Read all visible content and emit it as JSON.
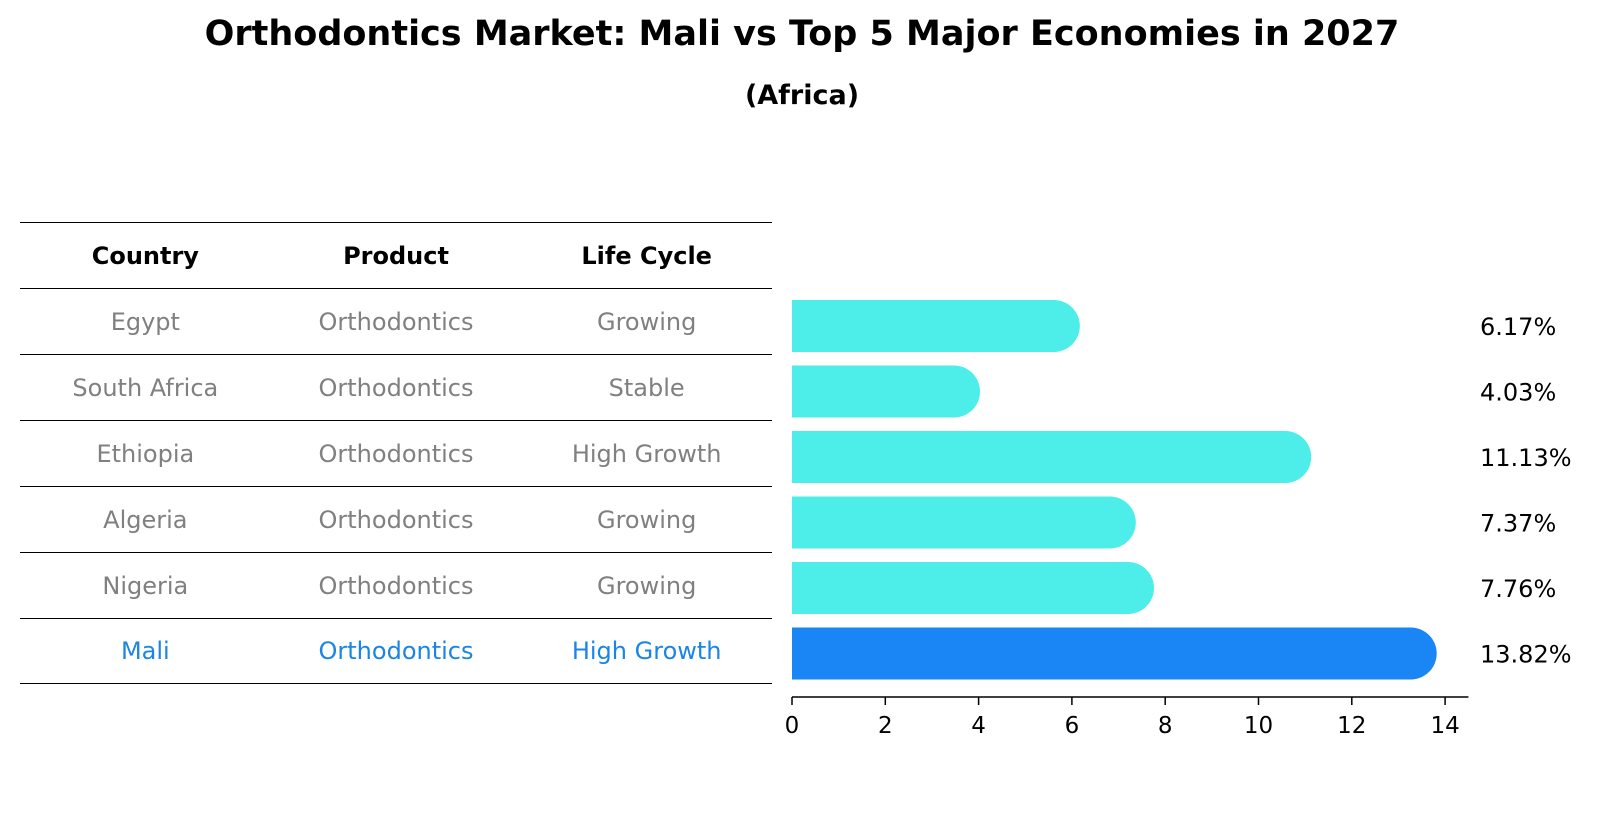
{
  "title": "Orthodontics Market: Mali vs Top 5 Major Economies in 2027",
  "subtitle": "(Africa)",
  "table": {
    "headers": [
      "Country",
      "Product",
      "Life Cycle"
    ],
    "rows": [
      [
        "Egypt",
        "Orthodontics",
        "Growing"
      ],
      [
        "South Africa",
        "Orthodontics",
        "Stable"
      ],
      [
        "Ethiopia",
        "Orthodontics",
        "High Growth"
      ],
      [
        "Algeria",
        "Orthodontics",
        "Growing"
      ],
      [
        "Nigeria",
        "Orthodontics",
        "Growing"
      ],
      [
        "Mali",
        "Orthodontics",
        "High Growth"
      ]
    ]
  },
  "colors": {
    "bar": "#4deeea",
    "highlight": "#1a85f5",
    "muted_text": "#808080",
    "highlight_text": "#1a85e6"
  },
  "chart_data": {
    "type": "bar",
    "orientation": "horizontal",
    "categories": [
      "Egypt",
      "South Africa",
      "Ethiopia",
      "Algeria",
      "Nigeria",
      "Mali"
    ],
    "values": [
      6.17,
      4.03,
      11.13,
      7.37,
      7.76,
      13.82
    ],
    "value_labels": [
      "6.17%",
      "4.03%",
      "11.13%",
      "7.37%",
      "7.76%",
      "13.82%"
    ],
    "highlight": "Mali",
    "xlim": [
      0,
      14.5
    ],
    "xticks": [
      0,
      2,
      4,
      6,
      8,
      10,
      12,
      14
    ],
    "title": "Orthodontics Market: Mali vs Top 5 Major Economies in 2027",
    "xlabel": "",
    "ylabel": ""
  }
}
